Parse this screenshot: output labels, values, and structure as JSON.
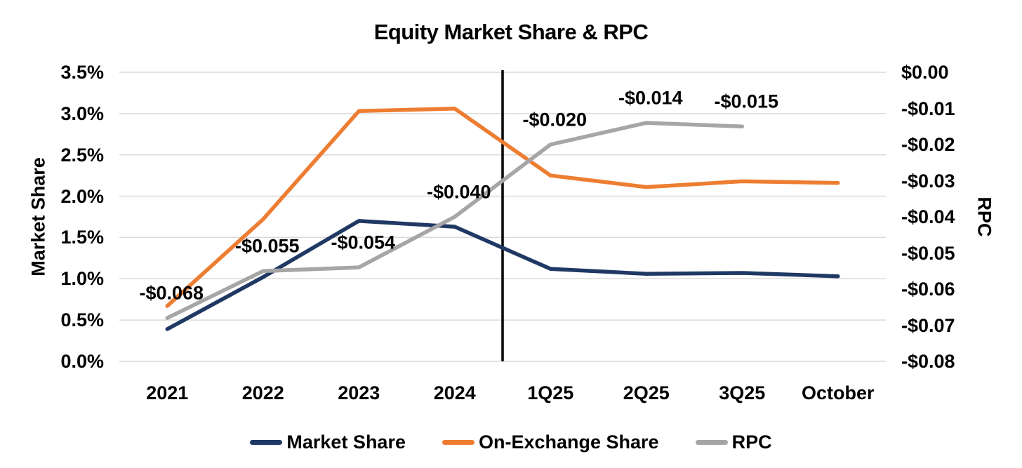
{
  "chart_data": {
    "type": "line",
    "title": "Equity Market Share & RPC",
    "categories": [
      "2021",
      "2022",
      "2023",
      "2024",
      "1Q25",
      "2Q25",
      "3Q25",
      "October"
    ],
    "left_axis": {
      "title": "Market Share",
      "unit": "%",
      "min": 0.0,
      "max": 3.5,
      "ticks": [
        "3.5%",
        "3.0%",
        "2.5%",
        "2.0%",
        "1.5%",
        "1.0%",
        "0.5%",
        "0.0%"
      ]
    },
    "right_axis": {
      "title": "RPC",
      "unit": "$",
      "min": -0.08,
      "max": 0.0,
      "ticks": [
        "$0.00",
        "-$0.01",
        "-$0.02",
        "-$0.03",
        "-$0.04",
        "-$0.05",
        "-$0.06",
        "-$0.07",
        "-$0.08"
      ]
    },
    "series": [
      {
        "name": "Market Share",
        "axis": "left",
        "color": "#1F3864",
        "values": [
          0.39,
          1.02,
          1.7,
          1.63,
          1.12,
          1.06,
          1.07,
          1.03
        ]
      },
      {
        "name": "On-Exchange Share",
        "axis": "left",
        "color": "#ED7D31",
        "values": [
          0.67,
          1.72,
          3.03,
          3.06,
          2.25,
          2.11,
          2.18,
          2.16
        ]
      },
      {
        "name": "RPC",
        "axis": "right",
        "color": "#A6A6A6",
        "values": [
          -0.068,
          -0.055,
          -0.054,
          -0.04,
          -0.02,
          -0.014,
          -0.015,
          null
        ],
        "point_labels": [
          "-$0.068",
          "-$0.055",
          "-$0.054",
          "-$0.040",
          "-$0.020",
          "-$0.014",
          "-$0.015",
          null
        ]
      }
    ],
    "separator": {
      "between": [
        "2024",
        "1Q25"
      ],
      "color": "#000000"
    },
    "grid": {
      "visible": true,
      "color": "#D9D9D9"
    },
    "legend_position": "bottom"
  }
}
